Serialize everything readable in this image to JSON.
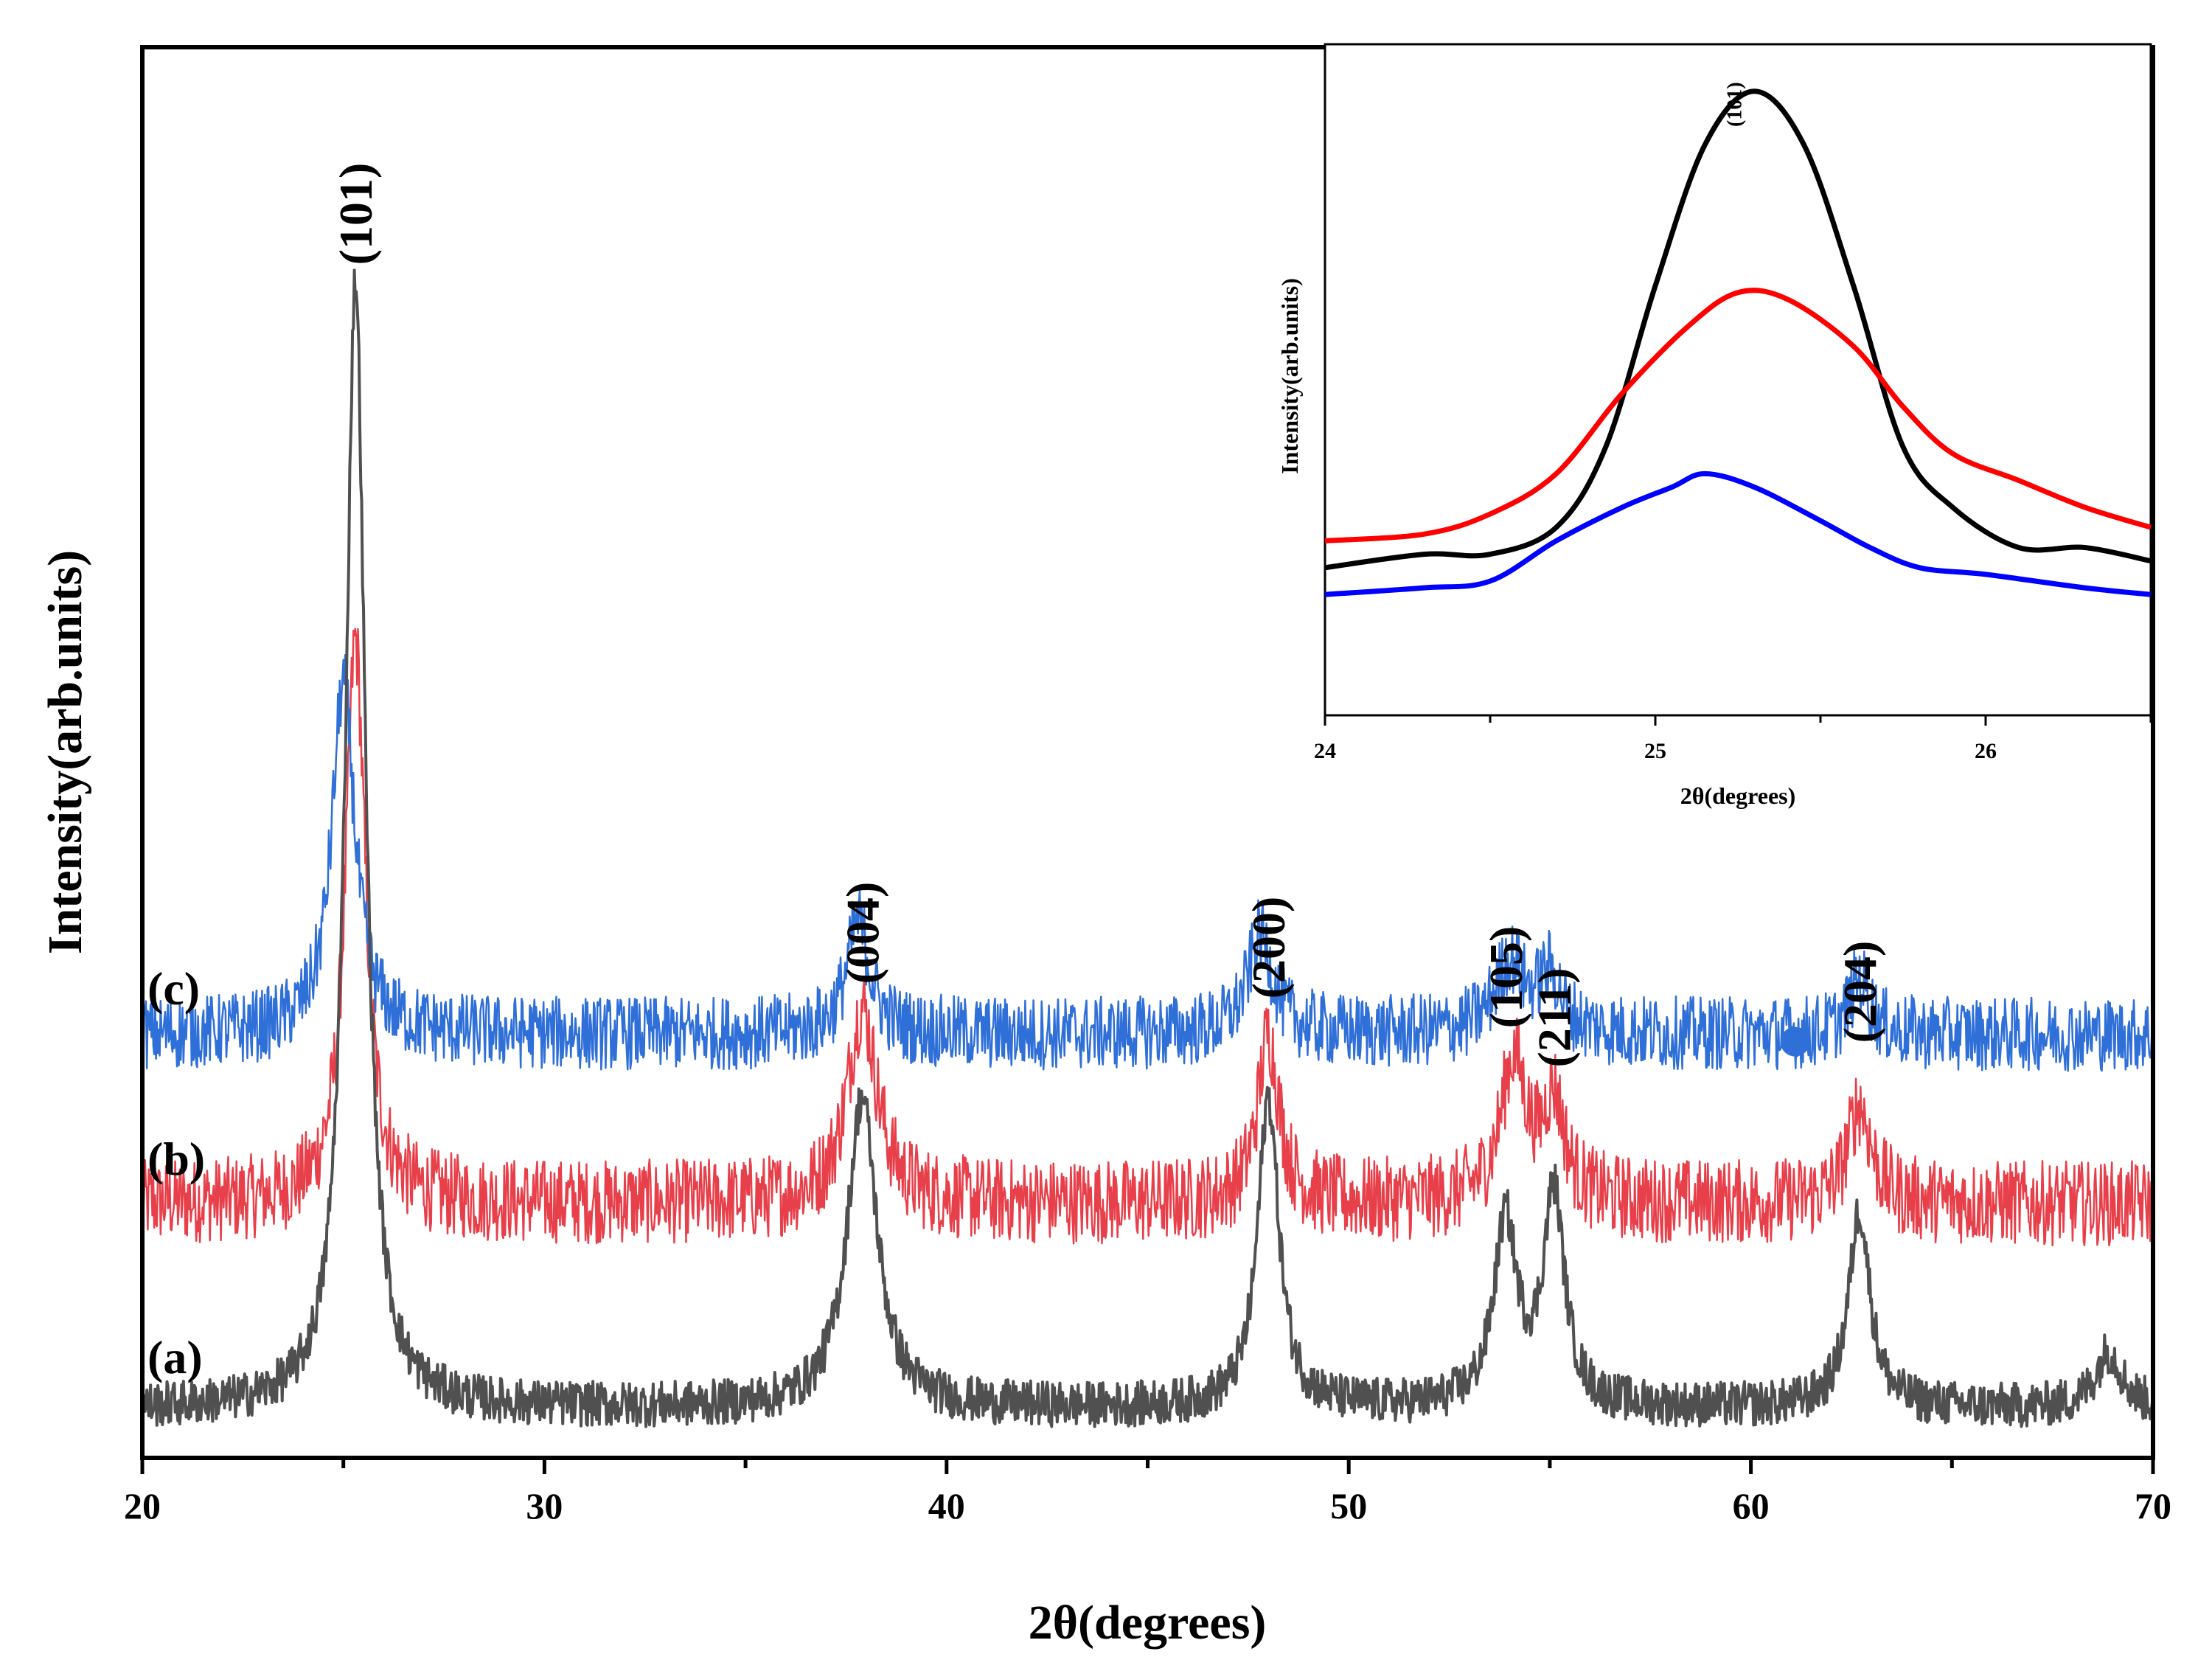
{
  "chart_data": {
    "type": "line",
    "main": {
      "xlabel": "2θ(degrees)",
      "ylabel": "Intensity(arb.units)",
      "xlim": [
        20,
        70
      ],
      "ylim": [
        0,
        100
      ],
      "xticks": [
        20,
        30,
        40,
        50,
        60,
        70
      ],
      "xtick_labels": [
        "20",
        "30",
        "40",
        "50",
        "60",
        "70"
      ],
      "peaks": [
        {
          "label": "(101)",
          "x": 25.3
        },
        {
          "label": "(004)",
          "x": 37.9
        },
        {
          "label": "(200)",
          "x": 48.0
        },
        {
          "label": "(105)",
          "x": 53.9
        },
        {
          "label": "(211)",
          "x": 55.1
        },
        {
          "label": "(204)",
          "x": 62.7
        }
      ],
      "series": [
        {
          "name": "(a)",
          "color": "#505050",
          "baseline": 3.5,
          "noise": 1.6,
          "width": 4,
          "peaks": [
            [
              25.3,
              80,
              0.3
            ],
            [
              37.9,
              22,
              0.45
            ],
            [
              48.0,
              22,
              0.32
            ],
            [
              53.9,
              13,
              0.35
            ],
            [
              55.1,
              15,
              0.32
            ],
            [
              62.7,
              14,
              0.32
            ],
            [
              68.9,
              4,
              0.4
            ]
          ]
        },
        {
          "name": "(b)",
          "color": "#e8404a",
          "baseline": 18,
          "noise": 3.0,
          "width": 2.5,
          "peaks": [
            [
              25.3,
              40,
              0.3
            ],
            [
              37.9,
              14,
              0.45
            ],
            [
              48.0,
              12,
              0.32
            ],
            [
              54.1,
              10,
              0.4
            ],
            [
              55.1,
              7,
              0.32
            ],
            [
              62.7,
              7,
              0.35
            ]
          ]
        },
        {
          "name": "(c)",
          "color": "#2f6fd8",
          "baseline": 30,
          "noise": 2.6,
          "width": 2.5,
          "peaks": [
            [
              25.0,
              25,
              0.35
            ],
            [
              37.8,
              8,
              0.35
            ],
            [
              47.8,
              7,
              0.38
            ],
            [
              54.0,
              5,
              0.45
            ],
            [
              55.0,
              4,
              0.35
            ],
            [
              62.7,
              4,
              0.3
            ]
          ]
        }
      ],
      "marker": {
        "x": 61.1,
        "y": 29.5,
        "color": "#2f6fd8"
      }
    },
    "inset": {
      "xlabel": "2θ(degrees)",
      "ylabel": "Intensity(arb.units)",
      "xlim": [
        24,
        26.5
      ],
      "ylim": [
        0,
        100
      ],
      "xticks": [
        24,
        25,
        26
      ],
      "xtick_labels": [
        "24",
        "25",
        "26"
      ],
      "peak_label": {
        "label": "(101)",
        "x": 25.3
      },
      "series": [
        {
          "name": "black",
          "color": "#000000",
          "points": [
            [
              24.0,
              22
            ],
            [
              24.3,
              24
            ],
            [
              24.5,
              24
            ],
            [
              24.7,
              28
            ],
            [
              24.85,
              40
            ],
            [
              25.0,
              64
            ],
            [
              25.15,
              85
            ],
            [
              25.3,
              93
            ],
            [
              25.45,
              85
            ],
            [
              25.6,
              64
            ],
            [
              25.75,
              40
            ],
            [
              25.9,
              31
            ],
            [
              26.1,
              25
            ],
            [
              26.3,
              25
            ],
            [
              26.5,
              23
            ]
          ]
        },
        {
          "name": "red",
          "color": "#ff0000",
          "points": [
            [
              24.0,
              26
            ],
            [
              24.3,
              27
            ],
            [
              24.5,
              30
            ],
            [
              24.7,
              36
            ],
            [
              24.9,
              48
            ],
            [
              25.1,
              58
            ],
            [
              25.25,
              63
            ],
            [
              25.4,
              62
            ],
            [
              25.6,
              55
            ],
            [
              25.75,
              46
            ],
            [
              25.9,
              39
            ],
            [
              26.1,
              35
            ],
            [
              26.3,
              31
            ],
            [
              26.5,
              28
            ]
          ]
        },
        {
          "name": "blue",
          "color": "#0000ff",
          "points": [
            [
              24.0,
              18
            ],
            [
              24.3,
              19
            ],
            [
              24.5,
              20
            ],
            [
              24.7,
              26
            ],
            [
              24.9,
              31
            ],
            [
              25.05,
              34
            ],
            [
              25.15,
              36
            ],
            [
              25.3,
              34
            ],
            [
              25.5,
              29
            ],
            [
              25.65,
              25
            ],
            [
              25.8,
              22
            ],
            [
              26.0,
              21
            ],
            [
              26.3,
              19
            ],
            [
              26.5,
              18
            ]
          ]
        }
      ]
    }
  }
}
